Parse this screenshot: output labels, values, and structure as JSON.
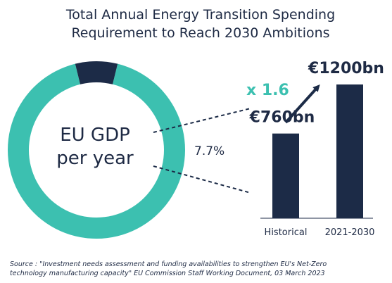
{
  "colors": {
    "teal": "#3cc0b0",
    "navy": "#1c2b47",
    "text": "#1e2a44",
    "background": "#ffffff"
  },
  "chart_data": [
    {
      "type": "pie",
      "style": "donut",
      "title_lines": [
        "Total Annual Energy Transition Spending",
        "Requirement to Reach 2030 Ambitions"
      ],
      "center_label_lines": [
        "EU GDP",
        "per year"
      ],
      "slices": [
        {
          "label": "",
          "value": 92.3,
          "color": "#3cc0b0"
        },
        {
          "label": "7.7%",
          "value": 7.7,
          "color": "#1c2b47"
        }
      ]
    },
    {
      "type": "bar",
      "categories": [
        "Historical",
        "2021-2030"
      ],
      "values": [
        760,
        1200
      ],
      "value_labels": [
        "€760bn",
        "€1200bn"
      ],
      "growth_label": "x 1.6",
      "color": "#1c2b47"
    }
  ],
  "source_lines": [
    "Source : \"Investment needs assessment and funding availabilities to strengthen EU's Net-Zero",
    "technology manufacturing capacity\" EU Commission Staff Working Document, 03 March 2023"
  ]
}
